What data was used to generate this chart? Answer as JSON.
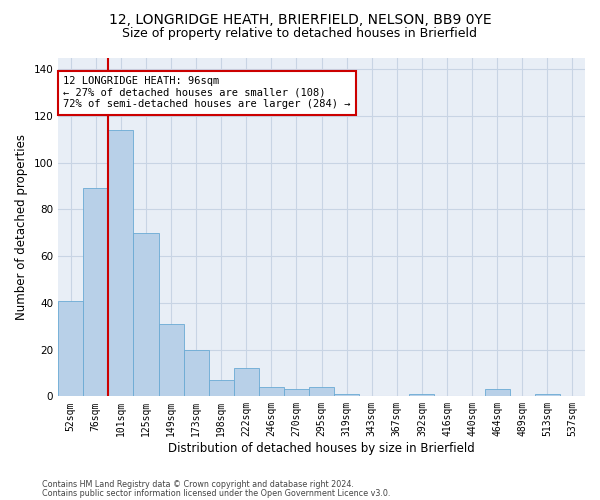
{
  "title1": "12, LONGRIDGE HEATH, BRIERFIELD, NELSON, BB9 0YE",
  "title2": "Size of property relative to detached houses in Brierfield",
  "xlabel": "Distribution of detached houses by size in Brierfield",
  "ylabel": "Number of detached properties",
  "categories": [
    "52sqm",
    "76sqm",
    "101sqm",
    "125sqm",
    "149sqm",
    "173sqm",
    "198sqm",
    "222sqm",
    "246sqm",
    "270sqm",
    "295sqm",
    "319sqm",
    "343sqm",
    "367sqm",
    "392sqm",
    "416sqm",
    "440sqm",
    "464sqm",
    "489sqm",
    "513sqm",
    "537sqm"
  ],
  "values": [
    41,
    89,
    114,
    70,
    31,
    20,
    7,
    12,
    4,
    3,
    4,
    1,
    0,
    0,
    1,
    0,
    0,
    3,
    0,
    1,
    0
  ],
  "bar_color": "#b8d0e8",
  "bar_edgecolor": "#6aaad4",
  "vline_x": 1.5,
  "annotation_title": "12 LONGRIDGE HEATH: 96sqm",
  "annotation_line1": "← 27% of detached houses are smaller (108)",
  "annotation_line2": "72% of semi-detached houses are larger (284) →",
  "annotation_box_color": "#ffffff",
  "annotation_box_edgecolor": "#cc0000",
  "vline_color": "#cc0000",
  "grid_color": "#c8d4e4",
  "background_color": "#e8eef6",
  "footer1": "Contains HM Land Registry data © Crown copyright and database right 2024.",
  "footer2": "Contains public sector information licensed under the Open Government Licence v3.0.",
  "ylim": [
    0,
    145
  ],
  "title1_fontsize": 10,
  "title2_fontsize": 9,
  "tick_fontsize": 7,
  "ylabel_fontsize": 8.5,
  "xlabel_fontsize": 8.5,
  "footer_fontsize": 5.8,
  "annotation_fontsize": 7.5
}
